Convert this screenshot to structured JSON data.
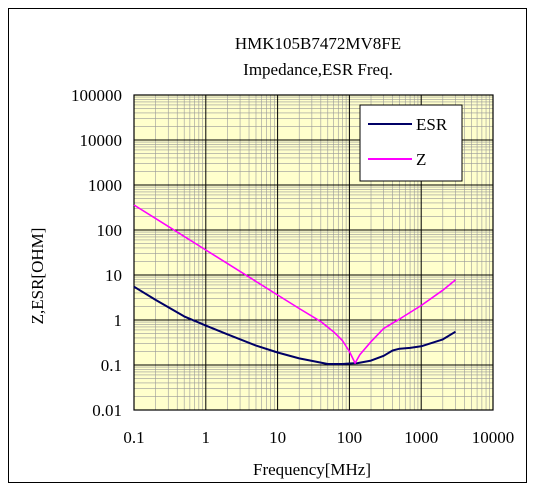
{
  "chart_data": {
    "type": "line",
    "title": "HMK105B7472MV8FE",
    "subtitle": "Impedance,ESR Freq.",
    "xlabel": "Frequency[MHz]",
    "ylabel": "Z,ESR[OHM]",
    "x_scale": "log",
    "y_scale": "log",
    "xlim": [
      0.1,
      10000
    ],
    "ylim": [
      0.01,
      100000
    ],
    "x_ticks": [
      "0.1",
      "1",
      "10",
      "100",
      "1000",
      "10000"
    ],
    "y_ticks": [
      "0.01",
      "0.1",
      "1",
      "10",
      "100",
      "1000",
      "10000",
      "100000"
    ],
    "grid": true,
    "legend_position": "top-right",
    "plot_background": "#ffffcc",
    "series": [
      {
        "name": "ESR",
        "color": "#000066",
        "points": [
          [
            0.1,
            5.5
          ],
          [
            0.2,
            2.8
          ],
          [
            0.5,
            1.2
          ],
          [
            1,
            0.75
          ],
          [
            2,
            0.48
          ],
          [
            5,
            0.27
          ],
          [
            10,
            0.19
          ],
          [
            20,
            0.14
          ],
          [
            50,
            0.105
          ],
          [
            80,
            0.105
          ],
          [
            100,
            0.108
          ],
          [
            130,
            0.11
          ],
          [
            200,
            0.125
          ],
          [
            300,
            0.16
          ],
          [
            400,
            0.21
          ],
          [
            500,
            0.23
          ],
          [
            700,
            0.24
          ],
          [
            1000,
            0.26
          ],
          [
            2000,
            0.37
          ],
          [
            3000,
            0.55
          ]
        ]
      },
      {
        "name": "Z",
        "color": "#ff00ff",
        "points": [
          [
            0.1,
            360
          ],
          [
            0.3,
            120
          ],
          [
            1,
            36
          ],
          [
            3,
            12
          ],
          [
            10,
            3.6
          ],
          [
            20,
            1.8
          ],
          [
            40,
            0.92
          ],
          [
            60,
            0.55
          ],
          [
            80,
            0.35
          ],
          [
            100,
            0.2
          ],
          [
            120,
            0.11
          ],
          [
            140,
            0.17
          ],
          [
            200,
            0.33
          ],
          [
            300,
            0.65
          ],
          [
            500,
            1.05
          ],
          [
            1000,
            2.1
          ],
          [
            2000,
            4.6
          ],
          [
            3000,
            7.8
          ]
        ]
      }
    ]
  }
}
